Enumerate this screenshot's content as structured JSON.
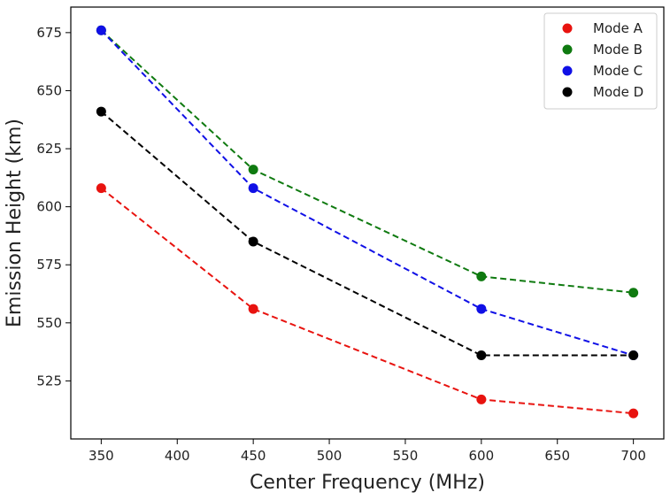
{
  "chart_data": {
    "type": "line",
    "title": "",
    "xlabel": "Center Frequency (MHz)",
    "ylabel": "Emission Height (km)",
    "xlim": [
      330,
      720
    ],
    "ylim": [
      500,
      686
    ],
    "xticks": [
      350,
      400,
      450,
      500,
      550,
      600,
      650,
      700
    ],
    "yticks": [
      525,
      550,
      575,
      600,
      625,
      650,
      675
    ],
    "grid": false,
    "legend_position": "top-right",
    "line_style": "dashed",
    "x": [
      350,
      450,
      600,
      700
    ],
    "series": [
      {
        "name": "Mode A",
        "color": "#e8130f",
        "values": [
          608,
          556,
          517,
          511
        ]
      },
      {
        "name": "Mode B",
        "color": "#0f7a10",
        "values": [
          676,
          616,
          570,
          563
        ]
      },
      {
        "name": "Mode C",
        "color": "#1010e6",
        "values": [
          676,
          608,
          556,
          536
        ]
      },
      {
        "name": "Mode D",
        "color": "#000000",
        "values": [
          641,
          585,
          536,
          536
        ]
      }
    ]
  }
}
